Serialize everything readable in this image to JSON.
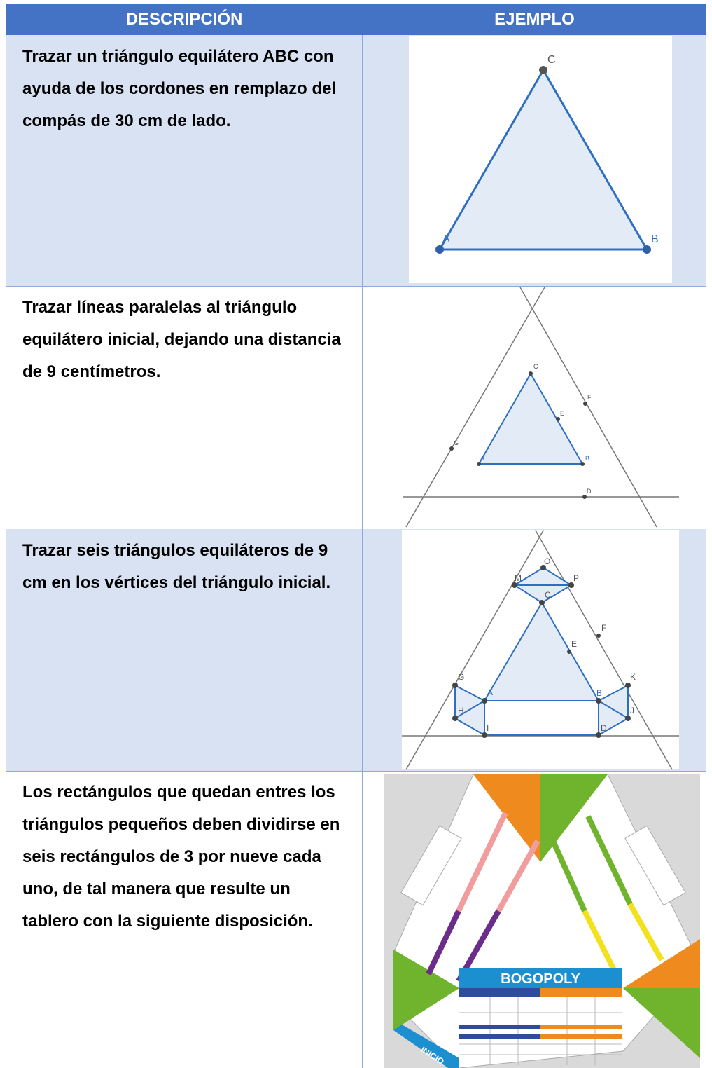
{
  "table": {
    "header": [
      "DESCRIPCIÓN",
      "EJEMPLO"
    ],
    "rows": [
      {
        "description": "Trazar un triángulo equilátero ABC con ayuda de los cordones en remplazo del compás de 30 cm de lado.",
        "figure_labels": [
          "A",
          "B",
          "C"
        ]
      },
      {
        "description": "Trazar líneas paralelas al triángulo equilátero inicial, dejando una distancia de 9 centímetros.",
        "figure_labels": [
          "A",
          "B",
          "C",
          "D",
          "E",
          "F",
          "G"
        ]
      },
      {
        "description": "Trazar seis triángulos equiláteros de 9 cm en los vértices del triángulo inicial.",
        "figure_labels": [
          "A",
          "B",
          "C",
          "D",
          "E",
          "F",
          "G",
          "H",
          "I",
          "J",
          "K",
          "M",
          "O",
          "P"
        ]
      },
      {
        "description": "Los rectángulos que quedan entres los triángulos pequeños deben dividirse en seis rectángulos de 3 por nueve cada uno, de tal manera que resulte un tablero con la siguiente disposición.",
        "figure_labels": [
          "BOGOPOLY",
          "INICIO"
        ]
      }
    ]
  }
}
